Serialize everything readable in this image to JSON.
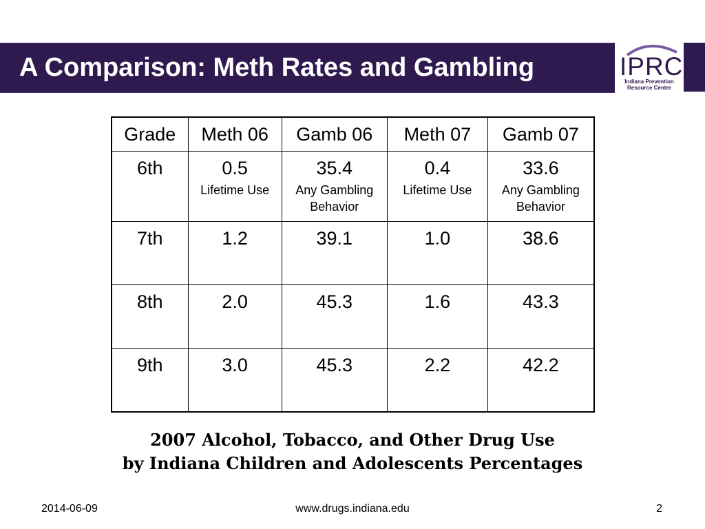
{
  "slide": {
    "title": "A Comparison: Meth Rates and Gambling",
    "logo": {
      "word": "IPRC",
      "line1": "Indiana Prevention",
      "line2": "Resource Center"
    }
  },
  "table": {
    "headers": [
      "Grade",
      "Meth 06",
      "Gamb 06",
      "Meth 07",
      "Gamb 07"
    ],
    "rows": [
      {
        "grade": "6th",
        "meth06": "0.5",
        "meth06_note": "Lifetime Use",
        "gamb06": "35.4",
        "gamb06_note": "Any Gambling Behavior",
        "meth07": "0.4",
        "meth07_note": "Lifetime Use",
        "gamb07": "33.6",
        "gamb07_note": "Any Gambling Behavior"
      },
      {
        "grade": "7th",
        "meth06": "1.2",
        "gamb06": "39.1",
        "meth07": "1.0",
        "gamb07": "38.6"
      },
      {
        "grade": "8th",
        "meth06": "2.0",
        "gamb06": "45.3",
        "meth07": "1.6",
        "gamb07": "43.3"
      },
      {
        "grade": "9th",
        "meth06": "3.0",
        "gamb06": "45.3",
        "meth07": "2.2",
        "gamb07": "42.2"
      }
    ]
  },
  "caption": {
    "line1": "2007 Alcohol, Tobacco, and Other Drug Use",
    "line2": "by Indiana Children and Adolescents Percentages"
  },
  "footer": {
    "date": "2014-06-09",
    "url": "www.drugs.indiana.edu",
    "page": "2"
  },
  "colors": {
    "title_bar": "#2e1a4f",
    "title_text": "#ffffff"
  }
}
